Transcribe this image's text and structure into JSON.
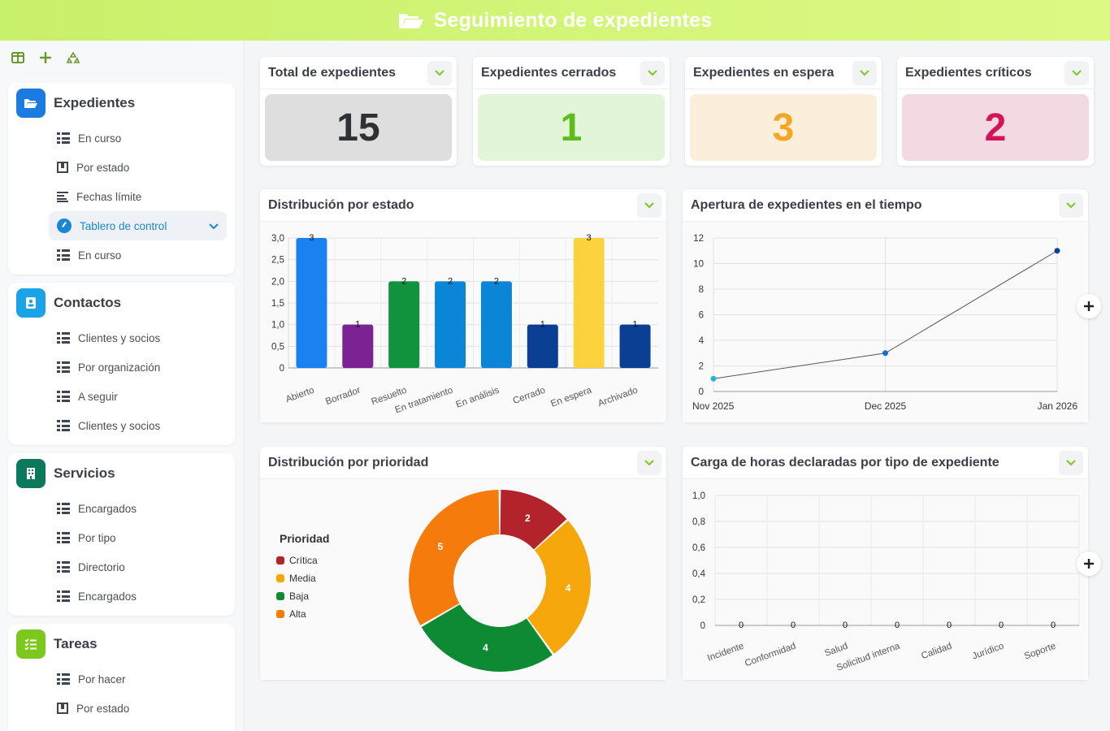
{
  "header": {
    "title": "Seguimiento de expedientes",
    "icon": "folder-open-icon"
  },
  "toolbar": {
    "icons": [
      "columns-icon",
      "plus-icon",
      "recycle-icon"
    ]
  },
  "sidebar": {
    "groups": [
      {
        "title": "Expedientes",
        "icon": "folder-open-icon",
        "color": "#1a7be0",
        "items": [
          {
            "label": "En curso",
            "icon": "list-icon"
          },
          {
            "label": "Por estado",
            "icon": "board-icon"
          },
          {
            "label": "Fechas límite",
            "icon": "timeline-icon"
          },
          {
            "label": "Tablero de control",
            "icon": "gauge-icon",
            "active": true
          },
          {
            "label": "En curso",
            "icon": "list-icon"
          }
        ]
      },
      {
        "title": "Contactos",
        "icon": "address-book-icon",
        "color": "#1aa3e6",
        "items": [
          {
            "label": "Clientes y socios",
            "icon": "list-icon"
          },
          {
            "label": "Por organización",
            "icon": "list-icon"
          },
          {
            "label": "A seguir",
            "icon": "list-icon"
          },
          {
            "label": "Clientes y socios",
            "icon": "list-icon"
          }
        ]
      },
      {
        "title": "Servicios",
        "icon": "building-icon",
        "color": "#0b7a5c",
        "items": [
          {
            "label": "Encargados",
            "icon": "list-icon"
          },
          {
            "label": "Por tipo",
            "icon": "list-icon"
          },
          {
            "label": "Directorio",
            "icon": "list-icon"
          },
          {
            "label": "Encargados",
            "icon": "list-icon"
          }
        ]
      },
      {
        "title": "Tareas",
        "icon": "tasks-icon",
        "color": "#7cc81f",
        "items": [
          {
            "label": "Por hacer",
            "icon": "list-icon"
          },
          {
            "label": "Por estado",
            "icon": "board-icon"
          },
          {
            "label": "",
            "icon": "list-icon"
          }
        ]
      }
    ]
  },
  "kpis": [
    {
      "title": "Total de expedientes",
      "value": "15",
      "bg": "#dedede",
      "fg": "#2f3135"
    },
    {
      "title": "Expedientes cerrados",
      "value": "1",
      "bg": "#e2f5d8",
      "fg": "#5cbd1a"
    },
    {
      "title": "Expedientes en espera",
      "value": "3",
      "bg": "#fbeedb",
      "fg": "#f5a623"
    },
    {
      "title": "Expedientes críticos",
      "value": "2",
      "bg": "#f3d9e2",
      "fg": "#d4145a"
    }
  ],
  "chart_data": [
    {
      "type": "bar",
      "title": "Distribución por estado",
      "categories": [
        "Abierto",
        "Borrador",
        "Resuelto",
        "En tratamiento",
        "En análisis",
        "Cerrado",
        "En espera",
        "Archivado"
      ],
      "values": [
        3,
        1,
        2,
        2,
        2,
        1,
        3,
        1
      ],
      "colors": [
        "#1a82f0",
        "#7b2393",
        "#10923f",
        "#0b86d6",
        "#0b86d6",
        "#0b3f94",
        "#fdd33d",
        "#0b3f94"
      ],
      "ylim": [
        0,
        3
      ],
      "yticks": [
        "0",
        "0,5",
        "1,0",
        "1,5",
        "2,0",
        "2,5",
        "3,0"
      ],
      "grid": true
    },
    {
      "type": "line",
      "title": "Apertura de expedientes en el tiempo",
      "x": [
        "Nov 2025",
        "Dec 2025",
        "Jan 2026"
      ],
      "values": [
        1,
        3,
        11
      ],
      "ylim": [
        0,
        12
      ],
      "yticks": [
        "0",
        "2",
        "4",
        "6",
        "8",
        "10",
        "12"
      ],
      "point_colors": [
        "#22b7d6",
        "#1a6bd6",
        "#0b3f94"
      ],
      "grid": true
    },
    {
      "type": "pie",
      "title": "Distribución por prioridad",
      "legend_title": "Prioridad",
      "legend_position": "left",
      "labels": [
        "Crítica",
        "Media",
        "Baja",
        "Alta"
      ],
      "values": [
        2,
        4,
        4,
        5
      ],
      "colors": [
        "#b3232b",
        "#f6a70b",
        "#0f8a34",
        "#f57c0c"
      ]
    },
    {
      "type": "bar",
      "title": "Carga de horas declaradas por tipo de expediente",
      "categories": [
        "Incidente",
        "Conformidad",
        "Salud",
        "Solicitud interna",
        "Calidad",
        "Jurídico",
        "Soporte"
      ],
      "values": [
        0,
        0,
        0,
        0,
        0,
        0,
        0
      ],
      "ylim": [
        0,
        1
      ],
      "yticks": [
        "0",
        "0,2",
        "0,4",
        "0,6",
        "0,8",
        "1,0"
      ],
      "grid": true
    }
  ]
}
